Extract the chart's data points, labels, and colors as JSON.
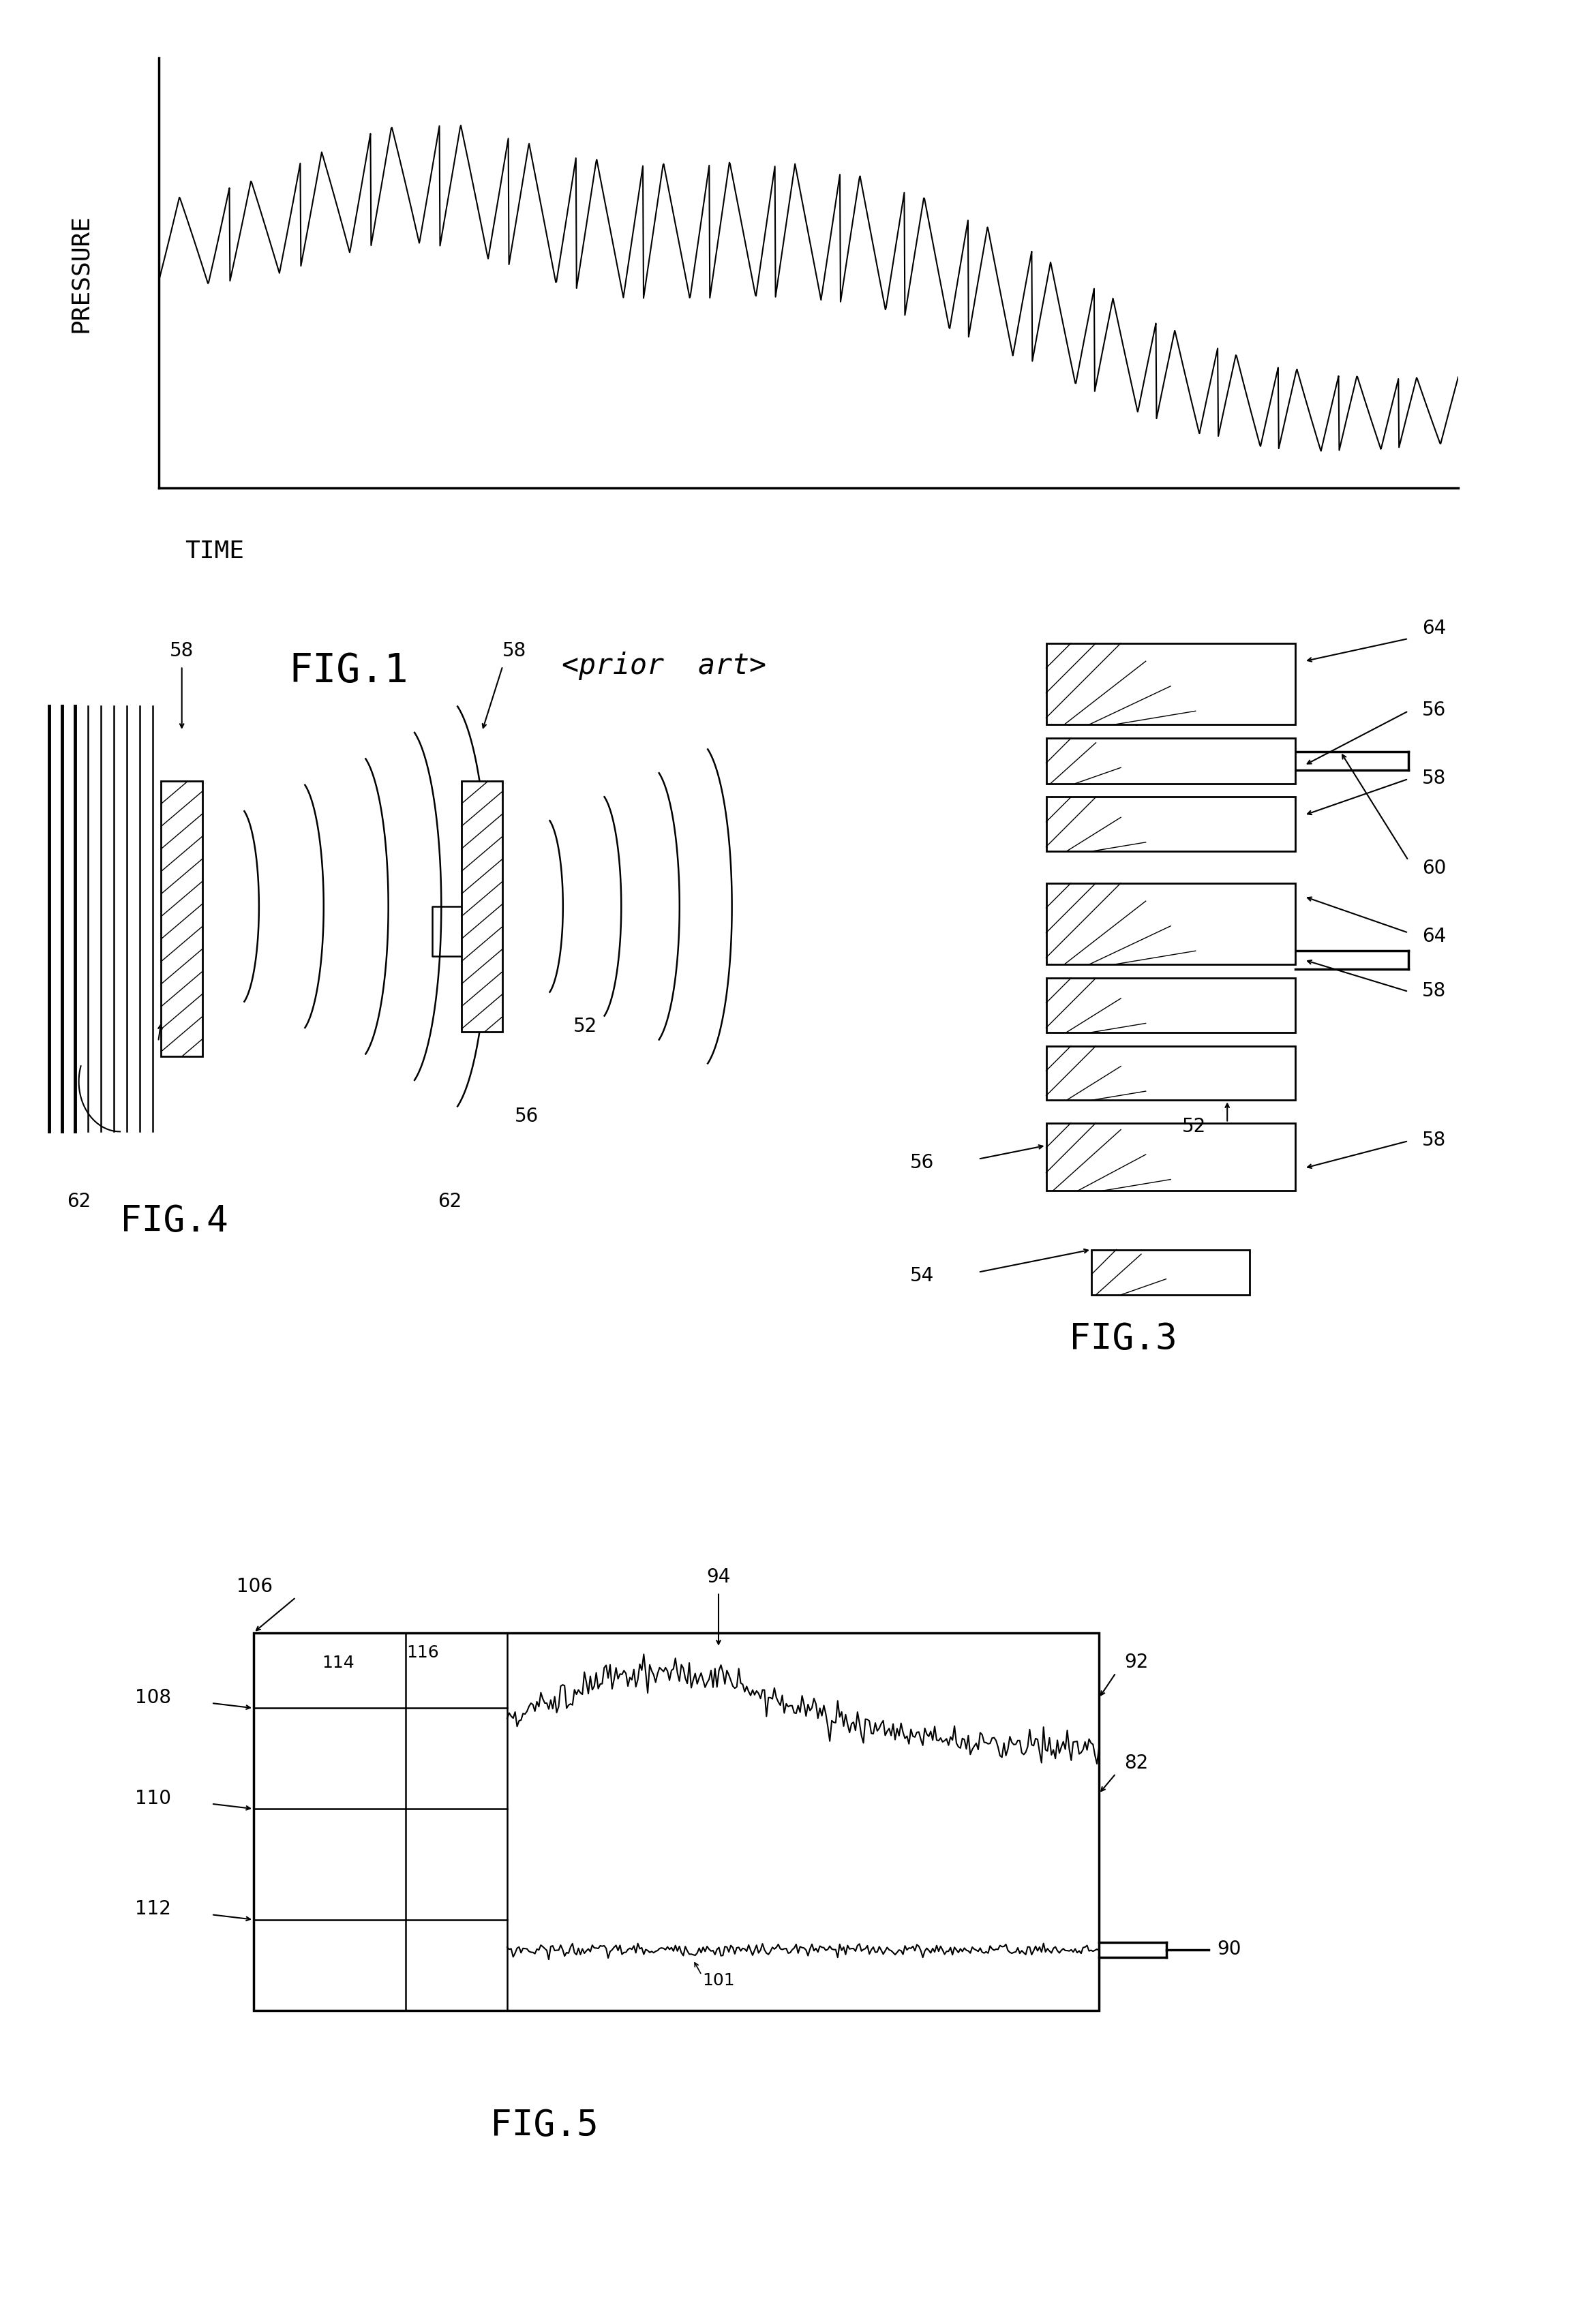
{
  "bg_color": "#ffffff",
  "fig_width": 23.25,
  "fig_height": 34.1,
  "fig1_label": "FIG.1",
  "fig1_prior": "<prior  art>",
  "fig3_label": "FIG.3",
  "fig4_label": "FIG.4",
  "fig5_label": "FIG.5",
  "pressure_label": "PRESSURE",
  "time_label": "TIME",
  "labels_58_a": "58",
  "labels_58_b": "58",
  "label_62_a": "62",
  "label_62_b": "62",
  "label_52": "52",
  "label_54": "54",
  "label_56_a": "56",
  "label_56_b": "56",
  "label_60": "60",
  "label_64_a": "64",
  "label_64_b": "64",
  "label_82": "82",
  "label_90": "90",
  "label_92": "92",
  "label_94": "94",
  "label_101": "101",
  "label_106": "106",
  "label_108": "108",
  "label_110": "110",
  "label_112": "112",
  "label_114": "114",
  "label_116": "116"
}
